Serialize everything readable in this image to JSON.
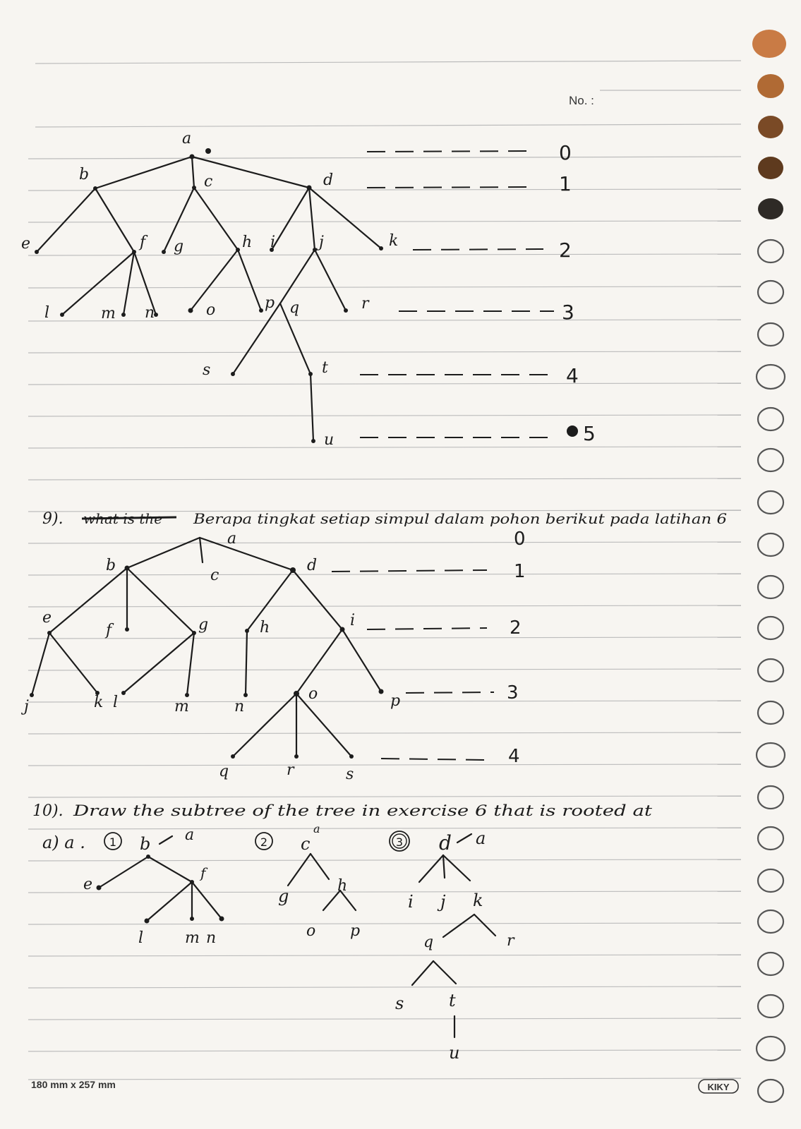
{
  "header": {
    "no_label": "No. :"
  },
  "footer": {
    "size_label": "180 mm x 257 mm",
    "brand": "KIKY"
  },
  "tree1": {
    "nodes": [
      "a",
      "b",
      "c",
      "d",
      "e",
      "f",
      "g",
      "h",
      "i",
      "j",
      "k",
      "l",
      "m",
      "n",
      "o",
      "p",
      "q",
      "r",
      "s",
      "t",
      "u"
    ],
    "levels": [
      "0",
      "1",
      "2",
      "3",
      "4",
      "5"
    ]
  },
  "question9": {
    "number": "9).",
    "struck_text": "what is the",
    "text": "Berapa tingkat setiap simpul dalam pohon berikut pada latihan 6"
  },
  "tree2": {
    "nodes": [
      "a",
      "b",
      "c",
      "d",
      "e",
      "f",
      "g",
      "h",
      "i",
      "j",
      "k",
      "l",
      "m",
      "n",
      "o",
      "p",
      "q",
      "r",
      "s"
    ],
    "levels": [
      "0",
      "1",
      "2",
      "3",
      "4"
    ]
  },
  "question10": {
    "number": "10).",
    "text": "Draw the subtree of the tree in exercise 6 that is rooted at",
    "part_label": "a) a .",
    "sub1": {
      "marker": "1",
      "root": "b",
      "note": "a",
      "nodes": [
        "e",
        "f",
        "l",
        "m",
        "n"
      ]
    },
    "sub2": {
      "marker": "2",
      "root": "c",
      "note": "a",
      "nodes": [
        "g",
        "h",
        "o",
        "p"
      ]
    },
    "sub3": {
      "marker": "3",
      "root": "d",
      "note": "a",
      "nodes": [
        "i",
        "j",
        "k",
        "q",
        "r",
        "s",
        "t",
        "u"
      ]
    }
  }
}
